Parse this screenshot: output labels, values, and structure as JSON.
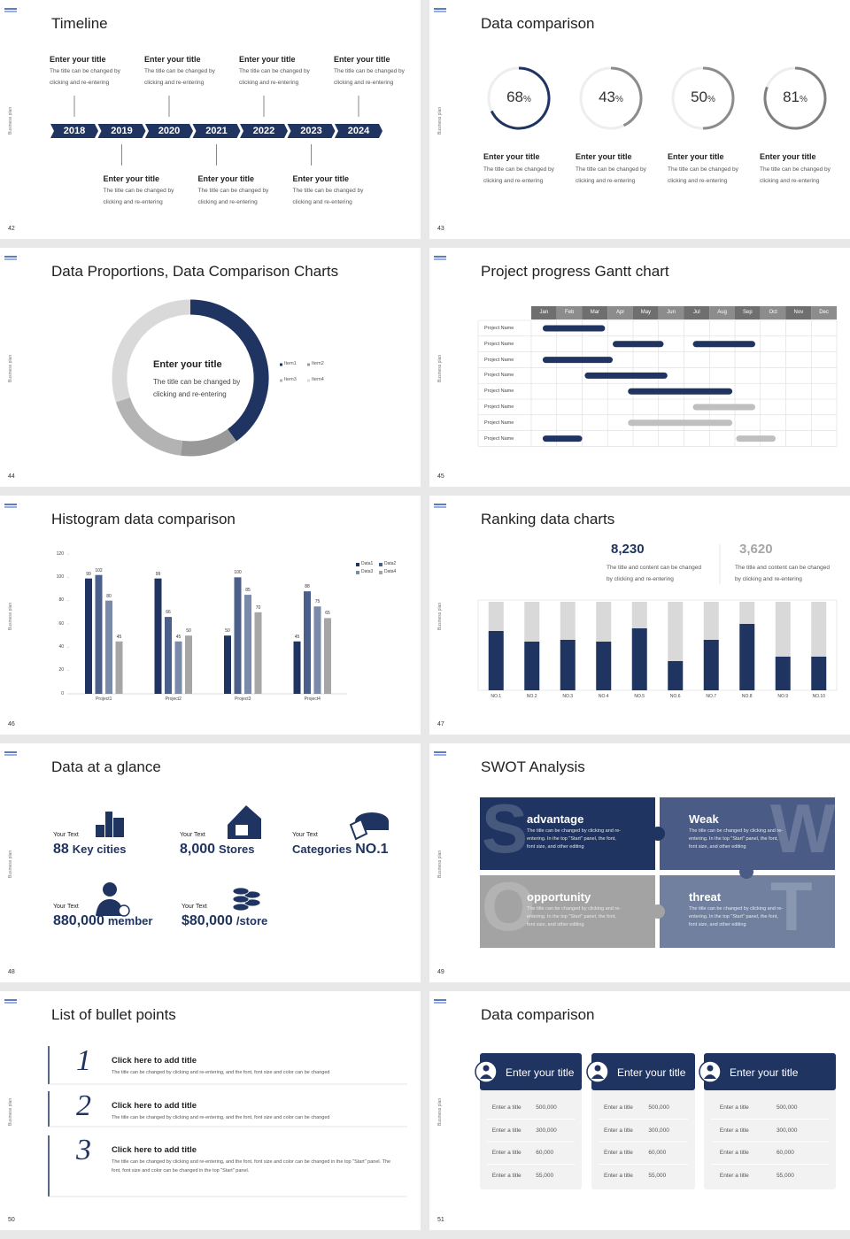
{
  "side_label": "Business plan",
  "slides": [
    {
      "page": "42",
      "title": "Timeline",
      "years": [
        "2018",
        "2019",
        "2020",
        "2021",
        "2022",
        "2023",
        "2024"
      ],
      "items": [
        {
          "title": "Enter your title",
          "lines": [
            "The title can be changed by",
            "clicking and re-entering"
          ]
        },
        {
          "title": "Enter your title",
          "lines": [
            "The title can be changed by",
            "clicking and re-entering"
          ]
        },
        {
          "title": "Enter your title",
          "lines": [
            "The title can be changed by",
            "clicking and re-entering"
          ]
        },
        {
          "title": "Enter your title",
          "lines": [
            "The title can be changed by",
            "clicking and re-entering"
          ]
        },
        {
          "title": "Enter your title",
          "lines": [
            "The title can be changed by",
            "clicking and re-entering"
          ]
        },
        {
          "title": "Enter your title",
          "lines": [
            "The title can be changed by",
            "clicking and re-entering"
          ]
        },
        {
          "title": "Enter your title",
          "lines": [
            "The title can be changed by",
            "clicking and re-entering"
          ]
        }
      ]
    },
    {
      "page": "43",
      "title": "Data comparison",
      "unit": "%",
      "circles": [
        {
          "value": 68,
          "color": "#1f3461",
          "title": "Enter your title",
          "lines": [
            "The title can be changed by",
            "clicking and re-entering"
          ]
        },
        {
          "value": 43,
          "color": "#8c8c8c",
          "title": "Enter your title",
          "lines": [
            "The title can be changed by",
            "clicking and re-entering"
          ]
        },
        {
          "value": 50,
          "color": "#8c8c8c",
          "title": "Enter your title",
          "lines": [
            "The title can be changed by",
            "clicking and re-entering"
          ]
        },
        {
          "value": 81,
          "color": "#7f7f7f",
          "title": "Enter your title",
          "lines": [
            "The title can be changed by",
            "clicking and re-entering"
          ]
        }
      ]
    },
    {
      "page": "44",
      "title": "Data Proportions, Data Comparison Charts",
      "center_title": "Enter your title",
      "center_lines": [
        "The title can be changed by",
        "clicking and re-entering"
      ],
      "chart_data": {
        "type": "donut",
        "categories": [
          "Item1",
          "Item2",
          "Item3",
          "Item4"
        ],
        "values": [
          40,
          12,
          18,
          30
        ],
        "colors": [
          "#1f3461",
          "#999999",
          "#b3b3b3",
          "#d9d9d9"
        ]
      }
    },
    {
      "page": "45",
      "title": "Project progress Gantt chart",
      "months": [
        "Jan",
        "Feb",
        "Mar",
        "Apr",
        "May",
        "Jun",
        "Jul",
        "Aug",
        "Sep",
        "Oct",
        "Nov",
        "Dec"
      ],
      "rows": [
        {
          "name": "Project Name",
          "bars": [
            {
              "start": 0.45,
              "end": 2.9,
              "color": "#1f3461"
            }
          ]
        },
        {
          "name": "Project Name",
          "bars": [
            {
              "start": 3.2,
              "end": 5.2,
              "color": "#1f3461"
            },
            {
              "start": 6.35,
              "end": 8.8,
              "color": "#1f3461"
            }
          ]
        },
        {
          "name": "Project Name",
          "bars": [
            {
              "start": 0.45,
              "end": 3.2,
              "color": "#1f3461"
            }
          ]
        },
        {
          "name": "Project Name",
          "bars": [
            {
              "start": 2.1,
              "end": 5.35,
              "color": "#1f3461"
            }
          ]
        },
        {
          "name": "Project Name",
          "bars": [
            {
              "start": 3.8,
              "end": 7.9,
              "color": "#1f3461"
            }
          ]
        },
        {
          "name": "Project Name",
          "bars": [
            {
              "start": 6.35,
              "end": 8.8,
              "color": "#bfbfbf"
            }
          ]
        },
        {
          "name": "Project Name",
          "bars": [
            {
              "start": 3.8,
              "end": 7.9,
              "color": "#bfbfbf"
            }
          ]
        },
        {
          "name": "Project Name",
          "bars": [
            {
              "start": 0.45,
              "end": 2.0,
              "color": "#1f3461"
            },
            {
              "start": 8.05,
              "end": 9.6,
              "color": "#bfbfbf"
            }
          ]
        }
      ]
    },
    {
      "page": "46",
      "title": "Histogram data comparison",
      "chart_data": {
        "type": "bar",
        "categories": [
          "Project1",
          "Project2",
          "Project3",
          "Project4"
        ],
        "series": [
          {
            "name": "Data1",
            "color": "#1f3461",
            "values": [
              99,
              99,
              50,
              45
            ]
          },
          {
            "name": "Data2",
            "color": "#4a5f8a",
            "values": [
              102,
              66,
              100,
              88
            ]
          },
          {
            "name": "Data3",
            "color": "#7a8aaa",
            "values": [
              80,
              45,
              85,
              75
            ]
          },
          {
            "name": "Data4",
            "color": "#a6a6a6",
            "values": [
              45,
              50,
              70,
              65
            ]
          }
        ],
        "ylim": [
          0,
          120
        ],
        "yticks": [
          0,
          20,
          40,
          60,
          80,
          100,
          120
        ]
      }
    },
    {
      "page": "47",
      "title": "Ranking data charts",
      "stats": [
        {
          "value": "8,230",
          "color": "#1f3461",
          "lines": [
            "The title and content can be changed",
            "by clicking and re-entering"
          ]
        },
        {
          "value": "3,620",
          "color": "#a6a6a6",
          "lines": [
            "The title and content can be changed",
            "by clicking and re-entering"
          ]
        }
      ],
      "chart_data": {
        "type": "stacked_bar",
        "categories": [
          "NO.1",
          "NO.2",
          "NO.3",
          "NO.4",
          "NO.5",
          "NO.6",
          "NO.7",
          "NO.8",
          "NO.9",
          "NO.10"
        ],
        "series": [
          {
            "color": "#1f3461",
            "values": [
              67,
              55,
              57,
              55,
              70,
              33,
              57,
              75,
              38,
              38
            ]
          },
          {
            "color": "#d9d9d9",
            "values": [
              33,
              45,
              43,
              45,
              30,
              67,
              43,
              25,
              62,
              62
            ]
          }
        ],
        "ylim": [
          0,
          100
        ]
      }
    },
    {
      "page": "48",
      "title": "Data at a glance",
      "items": [
        {
          "label": "Your Text",
          "parts": [
            "88",
            "Key cities"
          ]
        },
        {
          "label": "Your Text",
          "parts": [
            "8,000",
            "Stores"
          ]
        },
        {
          "label": "Your Text",
          "parts": [
            "Categories",
            "NO.1"
          ]
        },
        {
          "label": "Your Text",
          "parts": [
            "880,000",
            "member"
          ]
        },
        {
          "label": "Your Text",
          "parts": [
            "$80,000",
            "/store"
          ]
        }
      ]
    },
    {
      "page": "49",
      "title": "SWOT Analysis",
      "quadrants": [
        {
          "letter": "S",
          "title": "advantage",
          "color": "#1f3461",
          "text": "The title can be changed by clicking and re-entering. In the top \"Start\" panel, the font, font size, and other editing"
        },
        {
          "letter": "W",
          "title": "Weak",
          "color": "#4a5c85",
          "text": "The title can be changed by clicking and re-entering. In the top \"Start\" panel, the font, font size, and other editing"
        },
        {
          "letter": "O",
          "title": "opportunity",
          "color": "#a3a3a3",
          "text": "The title can be changed by clicking and re-entering. In the top \"Start\" panel, the font, font size, and other editing"
        },
        {
          "letter": "T",
          "title": "threat",
          "color": "#71809f",
          "text": "The title can be changed by clicking and re-entering. In the top \"Start\" panel, the font, font size, and other editing"
        }
      ]
    },
    {
      "page": "50",
      "title": "List of bullet points",
      "items": [
        {
          "number": "1",
          "title": "Click here to add title",
          "text": "The title can be changed by clicking and re-entering, and the font, font size and color can be changed"
        },
        {
          "number": "2",
          "title": "Click here to add title",
          "text": "The title can be changed by clicking and re-entering, and the font, font size and color can be changed"
        },
        {
          "number": "3",
          "title": "Click here to add title",
          "text": "The title can be changed by clicking and re-entering, and the font, font size and color can be changed in the top \"Start\" panel. The font, font size and color can be changed in the top \"Start\" panel."
        }
      ]
    },
    {
      "page": "51",
      "title": "Data comparison",
      "cards": [
        {
          "title": "Enter your title",
          "rows": [
            {
              "label": "Enter a title",
              "value": "500,000"
            },
            {
              "label": "Enter a title",
              "value": "300,000"
            },
            {
              "label": "Enter a title",
              "value": "60,000"
            },
            {
              "label": "Enter a title",
              "value": "55,000"
            }
          ]
        },
        {
          "title": "Enter your title",
          "rows": [
            {
              "label": "Enter a title",
              "value": "500,000"
            },
            {
              "label": "Enter a title",
              "value": "300,000"
            },
            {
              "label": "Enter a title",
              "value": "60,000"
            },
            {
              "label": "Enter a title",
              "value": "55,000"
            }
          ]
        },
        {
          "title": "Enter your title",
          "rows": [
            {
              "label": "Enter a title",
              "value": "500,000"
            },
            {
              "label": "Enter a title",
              "value": "300,000"
            },
            {
              "label": "Enter a title",
              "value": "60,000"
            },
            {
              "label": "Enter a title",
              "value": "55,000"
            }
          ]
        }
      ]
    }
  ]
}
